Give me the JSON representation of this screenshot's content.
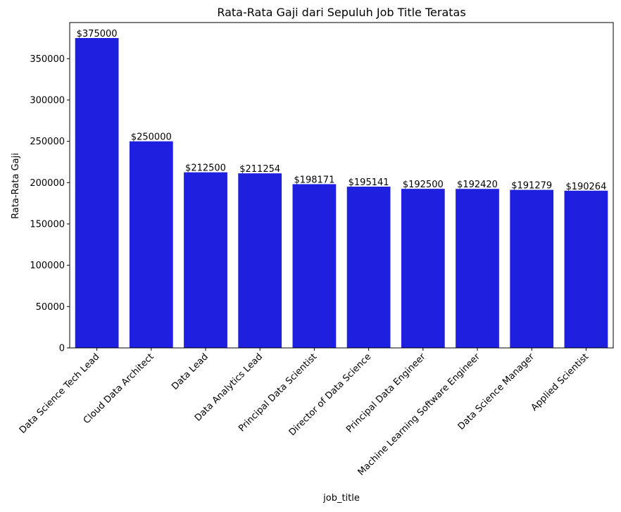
{
  "chart_data": {
    "type": "bar",
    "title": "Rata-Rata Gaji dari Sepuluh Job Title Teratas",
    "xlabel": "job_title",
    "ylabel": "Rata-Rata Gaji",
    "categories": [
      "Data Science Tech Lead",
      "Cloud Data Architect",
      "Data Lead",
      "Data Analytics Lead",
      "Principal Data Scientist",
      "Director of Data Science",
      "Principal Data Engineer",
      "Machine Learning Software Engineer",
      "Data Science Manager",
      "Applied Scientist"
    ],
    "values": [
      375000,
      250000,
      212500,
      211254,
      198171,
      195141,
      192500,
      192420,
      191279,
      190264
    ],
    "value_labels": [
      "$375000",
      "$250000",
      "$212500",
      "$211254",
      "$198171",
      "$195141",
      "$192500",
      "$192420",
      "$191279",
      "$190264"
    ],
    "ylim": [
      0,
      393750
    ],
    "yticks": [
      0,
      50000,
      100000,
      150000,
      200000,
      250000,
      300000,
      350000
    ],
    "ytick_labels": [
      "0",
      "50000",
      "100000",
      "150000",
      "200000",
      "250000",
      "300000",
      "350000"
    ],
    "bar_color": "#1f1fe0",
    "grid": false,
    "legend": "none"
  }
}
